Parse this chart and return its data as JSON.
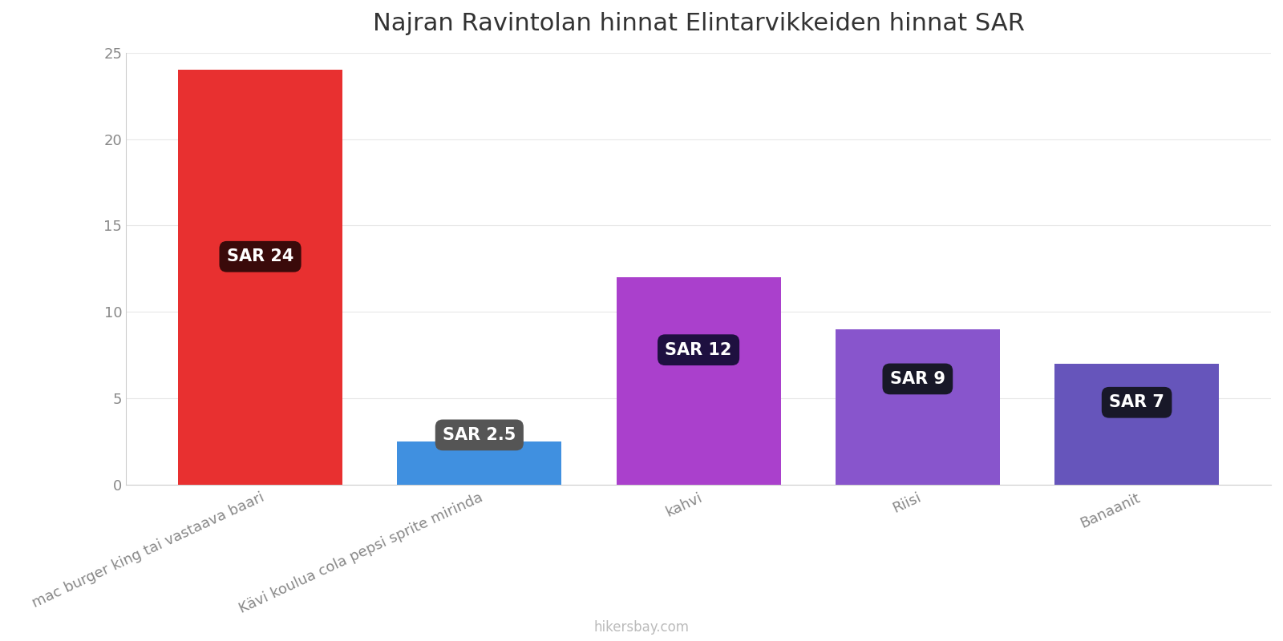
{
  "title": "Najran Ravintolan hinnat Elintarvikkeiden hinnat SAR",
  "categories": [
    "mac burger king tai vastaava baari",
    "Kävi koulua cola pepsi sprite mirinda",
    "kahvi",
    "Riisi",
    "Banaanit"
  ],
  "values": [
    24,
    2.5,
    12,
    9,
    7
  ],
  "bar_colors": [
    "#e83030",
    "#4090e0",
    "#aa40cc",
    "#8855cc",
    "#6655bb"
  ],
  "label_texts": [
    "SAR 24",
    "SAR 2.5",
    "SAR 12",
    "SAR 9",
    "SAR 7"
  ],
  "label_bg_colors": [
    "#3a0a0a",
    "#555555",
    "#1e1040",
    "#181828",
    "#181828"
  ],
  "ylim": [
    0,
    25
  ],
  "yticks": [
    0,
    5,
    10,
    15,
    20,
    25
  ],
  "title_fontsize": 22,
  "tick_label_fontsize": 13,
  "watermark": "hikersbay.com",
  "background_color": "#ffffff",
  "label_fontsize": 15,
  "label_y_fractions": [
    0.55,
    1.15,
    0.65,
    0.68,
    0.68
  ]
}
